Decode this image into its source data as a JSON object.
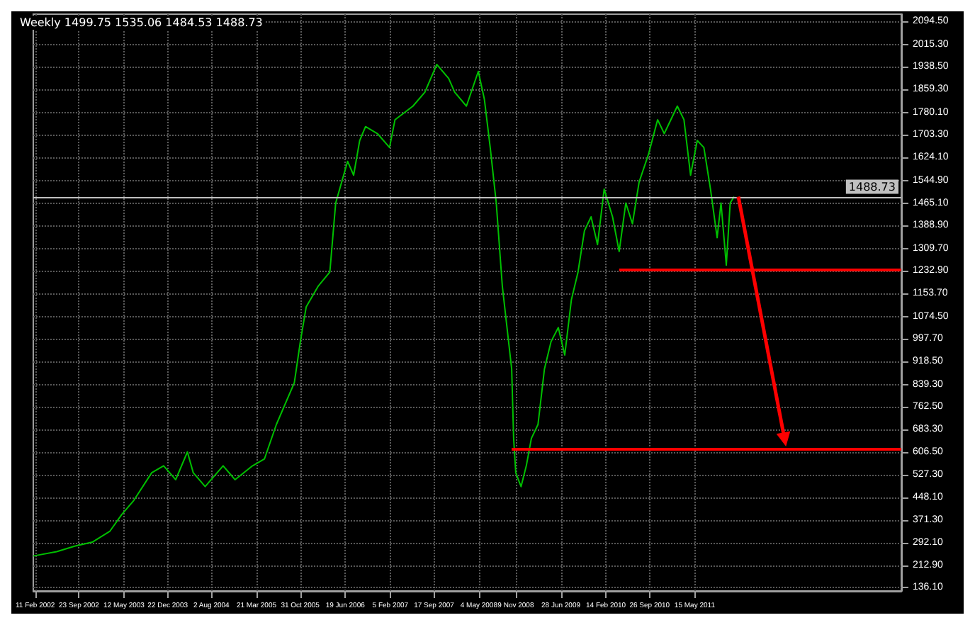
{
  "chart_data": {
    "type": "line",
    "title": "Weekly 1499.75 1535.06 1484.53 1488.73",
    "xlim": [
      "2002-02-01",
      "2014-04-08"
    ],
    "xticks": [
      {
        "value": "2002-02-11",
        "label": "11 Feb 2002"
      },
      {
        "value": "2002-09-23",
        "label": "23 Sep 2002"
      },
      {
        "value": "2003-05-12",
        "label": "12 May 2003"
      },
      {
        "value": "2003-12-22",
        "label": "22 Dec 2003"
      },
      {
        "value": "2004-08-02",
        "label": "2 Aug 2004"
      },
      {
        "value": "2005-03-21",
        "label": "21 Mar 2005"
      },
      {
        "value": "2005-10-31",
        "label": "31 Oct 2005"
      },
      {
        "value": "2006-06-19",
        "label": "19 Jun 2006"
      },
      {
        "value": "2007-02-05",
        "label": "5 Feb 2007"
      },
      {
        "value": "2007-09-17",
        "label": "17 Sep 2007"
      },
      {
        "value": "2008-05-04",
        "label": "4 May 2008"
      },
      {
        "value": "2008-11-09",
        "label": "9 Nov 2008"
      },
      {
        "value": "2009-06-28",
        "label": "28 Jun 2009"
      },
      {
        "value": "2010-02-14",
        "label": "14 Feb 2010"
      },
      {
        "value": "2010-09-26",
        "label": "26 Sep 2010"
      },
      {
        "value": "2011-05-15",
        "label": "15 May 2011"
      }
    ],
    "ylim": [
      125,
      2120
    ],
    "yticks": [
      {
        "value": 136.1,
        "label": "136.10"
      },
      {
        "value": 212.9,
        "label": "212.90"
      },
      {
        "value": 292.1,
        "label": "292.10"
      },
      {
        "value": 371.3,
        "label": "371.30"
      },
      {
        "value": 448.1,
        "label": "448.10"
      },
      {
        "value": 527.3,
        "label": "527.30"
      },
      {
        "value": 606.5,
        "label": "606.50"
      },
      {
        "value": 683.3,
        "label": "683.30"
      },
      {
        "value": 762.5,
        "label": "762.50"
      },
      {
        "value": 839.3,
        "label": "839.30"
      },
      {
        "value": 918.5,
        "label": "918.50"
      },
      {
        "value": 997.7,
        "label": "997.70"
      },
      {
        "value": 1074.5,
        "label": "1074.50"
      },
      {
        "value": 1153.7,
        "label": "1153.70"
      },
      {
        "value": 1232.9,
        "label": "1232.90"
      },
      {
        "value": 1309.7,
        "label": "1309.70"
      },
      {
        "value": 1388.9,
        "label": "1388.90"
      },
      {
        "value": 1465.1,
        "label": "1465.10"
      },
      {
        "value": 1544.9,
        "label": "1544.90"
      },
      {
        "value": 1624.1,
        "label": "1624.10"
      },
      {
        "value": 1703.3,
        "label": "1703.30"
      },
      {
        "value": 1780.1,
        "label": "1780.10"
      },
      {
        "value": 1859.3,
        "label": "1859.30"
      },
      {
        "value": 1938.5,
        "label": "1938.50"
      },
      {
        "value": 2015.3,
        "label": "2015.30"
      },
      {
        "value": 2094.5,
        "label": "2094.50"
      }
    ],
    "grid": true,
    "ref_lines": [
      {
        "axis": "y",
        "value": 1488.73,
        "label": "1488.73",
        "color": "#c0c0c0"
      }
    ],
    "series": [
      {
        "color": "#00c000",
        "x": [
          "2002-02",
          "2002-06",
          "2002-09",
          "2002-12",
          "2003-03",
          "2003-05",
          "2003-07",
          "2003-10",
          "2003-12",
          "2004-02",
          "2004-04",
          "2004-05",
          "2004-07",
          "2004-10",
          "2004-12",
          "2005-03",
          "2005-05",
          "2005-07",
          "2005-10",
          "2005-11",
          "2005-12",
          "2006-02",
          "2006-04",
          "2006-05",
          "2006-07",
          "2006-08",
          "2006-09",
          "2006-10",
          "2006-12",
          "2007-02",
          "2007-03",
          "2007-06",
          "2007-08",
          "2007-10",
          "2007-12",
          "2008-01",
          "2008-03",
          "2008-05",
          "2008-06",
          "2008-07",
          "2008-08",
          "2008-09",
          "2008-10-19",
          "2008-10-29",
          "2008-11-09",
          "2008-12-06",
          "2009-01-02",
          "2009-01-28",
          "2009-03-03",
          "2009-04-05",
          "2009-05-09",
          "2009-06-15",
          "2009-07-18",
          "2009-08-21",
          "2009-09-24",
          "2009-10-27",
          "2009-11-30",
          "2010-01-02",
          "2010-02-05",
          "2010-03-20",
          "2010-04-23",
          "2010-05-27",
          "2010-06-30",
          "2010-08-03",
          "2010-09-20",
          "2010-11-06",
          "2010-12-10",
          "2011-02-15",
          "2011-03-21",
          "2011-04-24",
          "2011-05-28",
          "2011-07-01",
          "2011-08-04",
          "2011-09-07",
          "2011-09-27",
          "2011-10-24",
          "2011-11-13",
          "2011-12-03"
        ],
        "values": [
          246,
          261,
          280,
          294,
          332,
          390,
          438,
          534,
          558,
          510,
          606,
          534,
          486,
          558,
          510,
          558,
          582,
          701,
          845,
          988,
          1108,
          1180,
          1228,
          1467,
          1611,
          1563,
          1683,
          1731,
          1707,
          1659,
          1755,
          1802,
          1850,
          1946,
          1898,
          1850,
          1802,
          1922,
          1826,
          1659,
          1467,
          1180,
          893,
          653,
          534,
          486,
          558,
          653,
          701,
          893,
          988,
          1036,
          941,
          1132,
          1228,
          1371,
          1419,
          1323,
          1515,
          1419,
          1299,
          1467,
          1395,
          1539,
          1635,
          1755,
          1707,
          1802,
          1755,
          1563,
          1683,
          1659,
          1515,
          1347,
          1467,
          1252,
          1467,
          1489
        ]
      },
      {
        "color": "#ff0000",
        "x": [
          "2010-04-23",
          "2014-04-08"
        ],
        "values": [
          1235,
          1235
        ]
      },
      {
        "color": "#ff0000",
        "x": [
          "2008-10-19",
          "2014-04-08"
        ],
        "values": [
          615,
          615
        ]
      }
    ]
  }
}
